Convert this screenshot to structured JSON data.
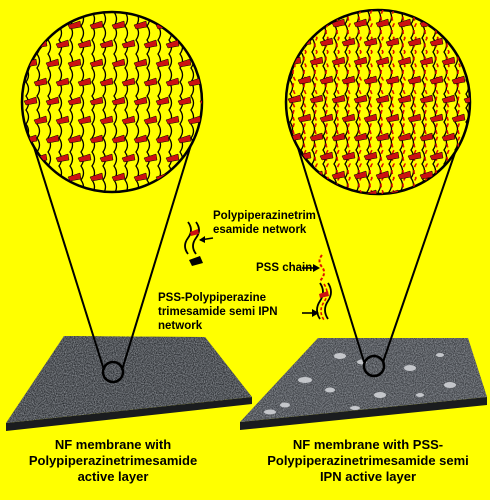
{
  "colors": {
    "background": "#ffff00",
    "chain_line": "#000000",
    "trimesamide_unit": "#cc1111",
    "pss_chain": "#dd1100",
    "membrane_surface": "#5a5e64"
  },
  "legend": {
    "network_label_line1": "Polypiperazinetrim",
    "network_label_line2": "esamide network",
    "pss_label": "PSS chain",
    "ipn_label_line1": "PSS-Polypiperazine",
    "ipn_label_line2": "trimesamide semi IPN",
    "ipn_label_line3": "network"
  },
  "captions": {
    "left_line1": "NF membrane with",
    "left_line2": "Polypiperazinetrimesamide",
    "left_line3": "active layer",
    "right_line1": "NF membrane with PSS-",
    "right_line2": "Polypiperazinetrimesamide semi",
    "right_line3": "IPN active layer"
  }
}
